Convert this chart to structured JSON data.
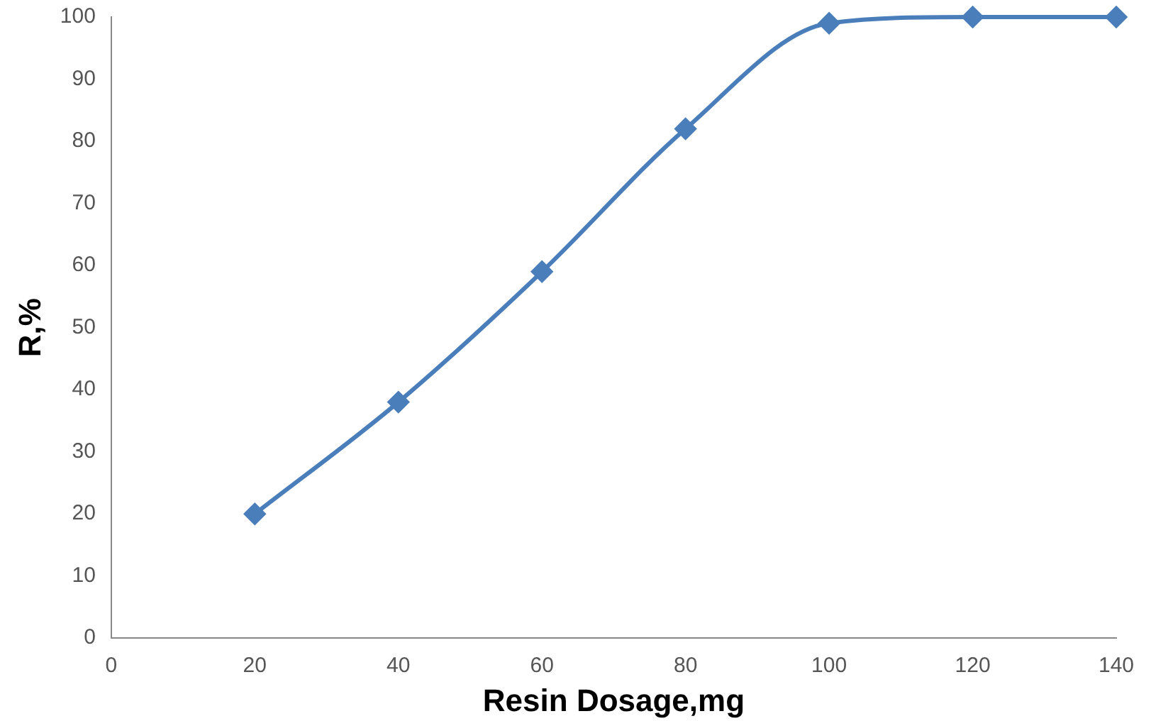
{
  "chart_data": {
    "type": "line",
    "xlabel": "Resin Dosage,mg",
    "ylabel": "R,%",
    "x": [
      20,
      40,
      60,
      80,
      100,
      120,
      140
    ],
    "series": [
      {
        "color": "#4a7ebb",
        "values": [
          20,
          38,
          59,
          82,
          99,
          100,
          100
        ]
      }
    ],
    "xlim": [
      0,
      140
    ],
    "xticks": [
      0,
      20,
      40,
      60,
      80,
      100,
      120,
      140
    ],
    "ylim": [
      0,
      100
    ],
    "yticks": [
      0,
      10,
      20,
      30,
      40,
      50,
      60,
      70,
      80,
      90,
      100
    ],
    "grid": false,
    "legend": false,
    "marker": "diamond",
    "line_style": "solid"
  }
}
